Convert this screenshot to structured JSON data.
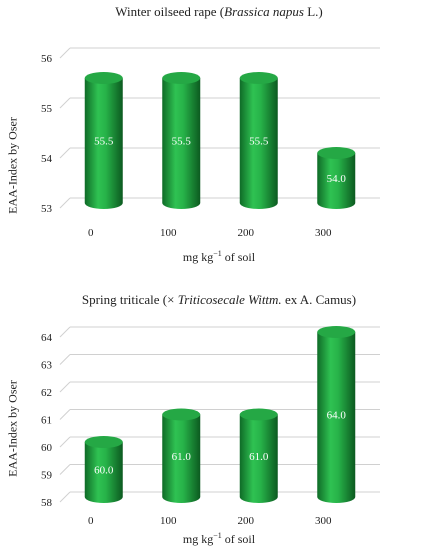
{
  "chart_data": [
    {
      "type": "bar",
      "title_main": "Winter oilseed rape (",
      "title_italic": "Brassica napus",
      "title_tail": " L.)",
      "ylabel": "EAA-Index by Oser",
      "xlabel_main": "mg kg",
      "xlabel_sup": "−1",
      "xlabel_tail": " of soil",
      "categories": [
        "0",
        "100",
        "200",
        "300"
      ],
      "values": [
        55.5,
        55.5,
        55.5,
        54.0
      ],
      "labels": [
        "55.5",
        "55.5",
        "55.5",
        "54.0"
      ],
      "ylim": [
        53,
        56
      ],
      "yticks": [
        53,
        54,
        55,
        56
      ],
      "bar_color": "#1e9e3e",
      "grid": true,
      "style": "3d-cylinder"
    },
    {
      "type": "bar",
      "title_main": "Spring triticale (× ",
      "title_italic": "Triticosecale Wittm.",
      "title_tail": " ex A. Camus)",
      "ylabel": "EAA-Index by Oser",
      "xlabel_main": "mg kg",
      "xlabel_sup": "−1",
      "xlabel_tail": " of soil",
      "categories": [
        "0",
        "100",
        "200",
        "300"
      ],
      "values": [
        60.0,
        61.0,
        61.0,
        64.0
      ],
      "labels": [
        "60.0",
        "61.0",
        "61.0",
        "64.0"
      ],
      "ylim": [
        58,
        64
      ],
      "yticks": [
        58,
        59,
        60,
        61,
        62,
        63,
        64
      ],
      "bar_color": "#1e9e3e",
      "grid": true,
      "style": "3d-cylinder"
    }
  ]
}
